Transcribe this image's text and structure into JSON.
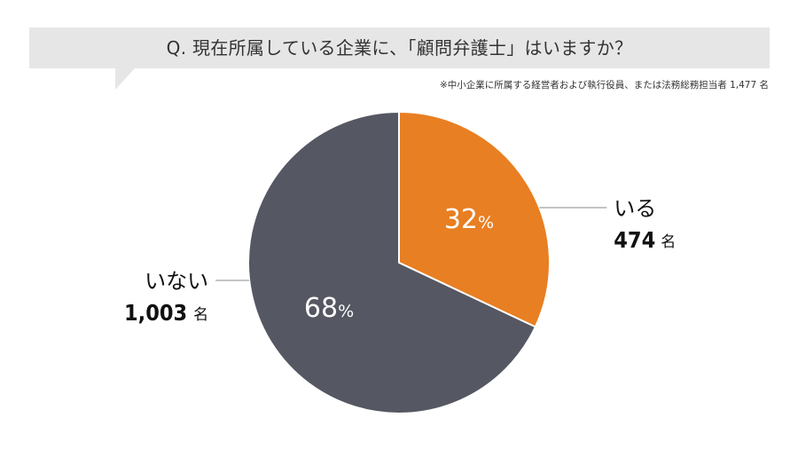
{
  "header": {
    "question": "Q. 現在所属している企業に、「顧問弁護士」はいますか？",
    "note": "※中小企業に所属する経営者および執行役員、または法務総務担当者 1,477 名"
  },
  "chart_data": {
    "type": "pie",
    "title": "Q. 現在所属している企業に、「顧問弁護士」はいますか？",
    "start_angle_deg": 0,
    "direction": "clockwise",
    "slices": [
      {
        "label": "いる",
        "count": 474,
        "count_text": "474",
        "unit": "名",
        "percent": 32,
        "percent_text": "32",
        "percent_sign": "%",
        "color": "#e87f22"
      },
      {
        "label": "いない",
        "count": 1003,
        "count_text": "1,003",
        "unit": "名",
        "percent": 68,
        "percent_text": "68",
        "percent_sign": "%",
        "color": "#555762"
      }
    ],
    "total": 1477,
    "leader_line_color": "#8a8a8a"
  }
}
